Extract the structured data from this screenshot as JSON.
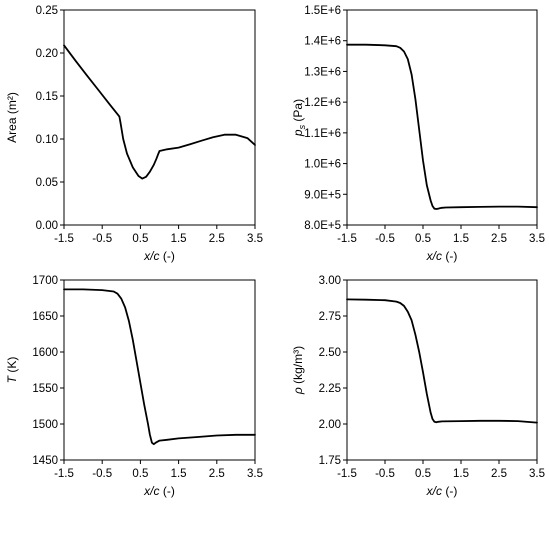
{
  "chart_data": [
    {
      "type": "line",
      "title": "",
      "xlabel": "x/c (-)",
      "ylabel": "Area (m²)",
      "xlim": [
        -1.5,
        3.5
      ],
      "ylim": [
        0,
        0.25
      ],
      "xticks": [
        "-1.5",
        "-0.5",
        "0.5",
        "1.5",
        "2.5",
        "3.5"
      ],
      "yticks": [
        "0.00",
        "0.05",
        "0.10",
        "0.15",
        "0.20",
        "0.25"
      ],
      "grid": false,
      "x": [
        -1.5,
        -1.2,
        -0.9,
        -0.6,
        -0.3,
        -0.05,
        -0.02,
        0.05,
        0.15,
        0.3,
        0.45,
        0.55,
        0.65,
        0.75,
        0.85,
        0.92,
        0.97,
        1.0,
        1.2,
        1.5,
        1.8,
        2.1,
        2.4,
        2.7,
        3.0,
        3.3,
        3.5
      ],
      "series": [
        {
          "values": [
            0.209,
            0.191,
            0.174,
            0.157,
            0.14,
            0.126,
            0.119,
            0.1,
            0.083,
            0.067,
            0.057,
            0.054,
            0.056,
            0.062,
            0.07,
            0.077,
            0.083,
            0.086,
            0.088,
            0.09,
            0.094,
            0.098,
            0.102,
            0.105,
            0.105,
            0.101,
            0.093
          ]
        }
      ]
    },
    {
      "type": "line",
      "title": "",
      "xlabel": "x/c (-)",
      "ylabel": "p (Pa)",
      "ylabel_sub": "s",
      "xlim": [
        -1.5,
        3.5
      ],
      "ylim": [
        800000,
        1500000
      ],
      "xticks": [
        "-1.5",
        "-0.5",
        "0.5",
        "1.5",
        "2.5",
        "3.5"
      ],
      "yticks": [
        "8.0E+5",
        "9.0E+5",
        "1.0E+6",
        "1.1E+6",
        "1.2E+6",
        "1.3E+6",
        "1.4E+6",
        "1.5E+6"
      ],
      "grid": false,
      "x": [
        -1.5,
        -1.0,
        -0.5,
        -0.2,
        -0.1,
        0.0,
        0.1,
        0.2,
        0.3,
        0.4,
        0.5,
        0.6,
        0.7,
        0.75,
        0.8,
        0.85,
        0.9,
        0.95,
        1.0,
        1.1,
        1.5,
        2.0,
        2.5,
        3.0,
        3.5
      ],
      "series": [
        {
          "values": [
            1387000,
            1387000,
            1385000,
            1382000,
            1377000,
            1365000,
            1340000,
            1290000,
            1210000,
            1110000,
            1010000,
            930000,
            880000,
            862000,
            853000,
            852000,
            853000,
            855000,
            856000,
            857000,
            858000,
            859000,
            860000,
            860000,
            858000
          ]
        }
      ]
    },
    {
      "type": "line",
      "title": "",
      "xlabel": "x/c (-)",
      "ylabel": "T (K)",
      "xlim": [
        -1.5,
        3.5
      ],
      "ylim": [
        1450,
        1700
      ],
      "xticks": [
        "-1.5",
        "-0.5",
        "0.5",
        "1.5",
        "2.5",
        "3.5"
      ],
      "yticks": [
        "1450",
        "1500",
        "1550",
        "1600",
        "1650",
        "1700"
      ],
      "grid": false,
      "x": [
        -1.5,
        -1.0,
        -0.5,
        -0.2,
        -0.1,
        0.0,
        0.1,
        0.2,
        0.3,
        0.4,
        0.5,
        0.6,
        0.7,
        0.75,
        0.8,
        0.85,
        0.9,
        1.0,
        1.2,
        1.5,
        2.0,
        2.5,
        3.0,
        3.5
      ],
      "series": [
        {
          "values": [
            1687,
            1687,
            1686,
            1684,
            1681,
            1674,
            1662,
            1643,
            1617,
            1587,
            1557,
            1527,
            1500,
            1485,
            1474,
            1472,
            1474,
            1477,
            1478,
            1480,
            1482,
            1484,
            1485,
            1485
          ]
        }
      ]
    },
    {
      "type": "line",
      "title": "",
      "xlabel": "x/c (-)",
      "ylabel": "ρ (kg/m³)",
      "xlim": [
        -1.5,
        3.5
      ],
      "ylim": [
        1.75,
        3.0
      ],
      "xticks": [
        "-1.5",
        "-0.5",
        "0.5",
        "1.5",
        "2.5",
        "3.5"
      ],
      "yticks": [
        "1.75",
        "2.00",
        "2.25",
        "2.50",
        "2.75",
        "3.00"
      ],
      "grid": false,
      "x": [
        -1.5,
        -1.0,
        -0.5,
        -0.2,
        -0.1,
        0.0,
        0.1,
        0.2,
        0.3,
        0.4,
        0.5,
        0.6,
        0.7,
        0.75,
        0.8,
        0.85,
        0.9,
        1.0,
        1.5,
        2.0,
        2.5,
        3.0,
        3.5
      ],
      "series": [
        {
          "values": [
            2.865,
            2.863,
            2.86,
            2.85,
            2.84,
            2.82,
            2.78,
            2.72,
            2.62,
            2.5,
            2.36,
            2.21,
            2.08,
            2.035,
            2.015,
            2.012,
            2.015,
            2.018,
            2.02,
            2.022,
            2.022,
            2.02,
            2.01
          ]
        }
      ]
    }
  ]
}
